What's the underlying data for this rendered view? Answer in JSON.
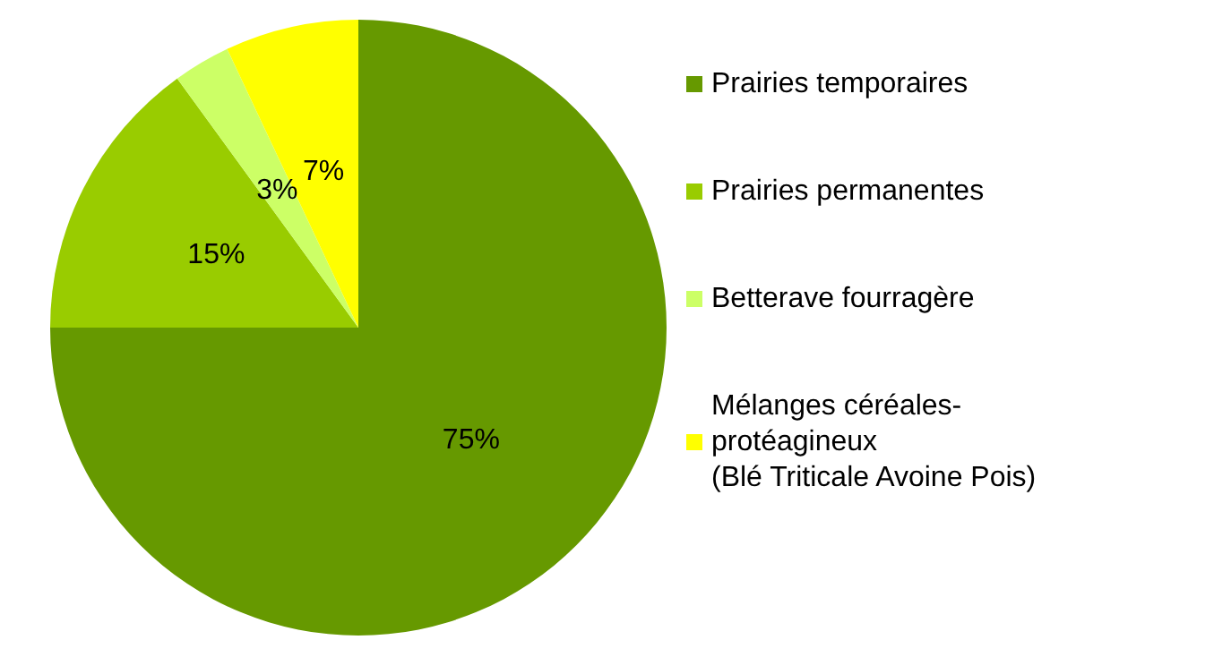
{
  "chart_data": {
    "type": "pie",
    "categories": [
      "Prairies temporaires",
      "Prairies permanentes",
      "Betterave fourragère",
      "Mélanges céréales-\nprotéagineux\n(Blé Triticale Avoine Pois)"
    ],
    "values": [
      75,
      15,
      3,
      7
    ],
    "value_labels": [
      "75%",
      "15%",
      "3%",
      "7%"
    ],
    "colors": [
      "#669900",
      "#99cc00",
      "#ccff66",
      "#ffff00"
    ],
    "legend": "right"
  }
}
